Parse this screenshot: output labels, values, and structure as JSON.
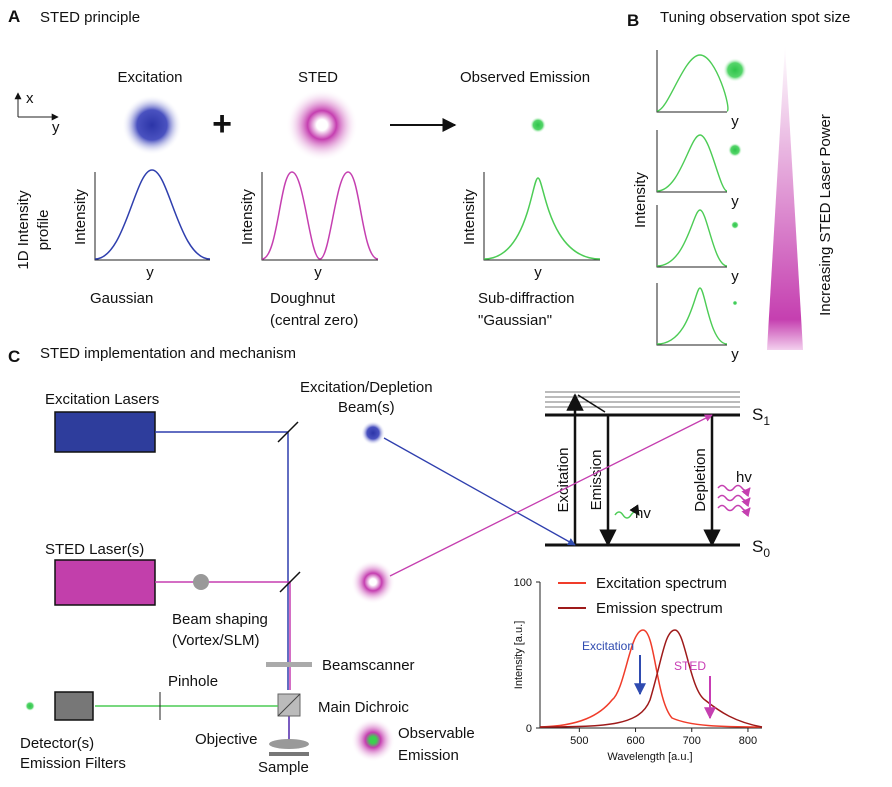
{
  "panel_a": {
    "label": "A",
    "title": "STED principle",
    "axis_x": "x",
    "axis_y": "y",
    "profile_label": [
      "1D Intensity",
      "profile"
    ],
    "plus": "+",
    "excitation": {
      "title": "Excitation",
      "ylabel": "Intensity",
      "xlabel": "y",
      "caption": [
        "Gaussian"
      ]
    },
    "sted": {
      "title": "STED",
      "ylabel": "Intensity",
      "xlabel": "y",
      "caption": [
        "Doughnut",
        "(central zero)"
      ]
    },
    "emission": {
      "title": "Observed Emission",
      "ylabel": "Intensity",
      "xlabel": "y",
      "caption": [
        "Sub-diffraction",
        "\"Gaussian\""
      ]
    }
  },
  "panel_b": {
    "label": "B",
    "title": "Tuning observation spot size",
    "ylabel": "Intensity",
    "xlabels": [
      "y",
      "y",
      "y",
      "y"
    ],
    "power_label": "Increasing STED Laser Power"
  },
  "panel_c": {
    "label": "C",
    "title": "STED implementation and mechanism",
    "excitation_lasers": "Excitation Lasers",
    "sted_lasers": "STED Laser(s)",
    "beam_shaping": [
      "Beam shaping",
      "(Vortex/SLM)"
    ],
    "pinhole": "Pinhole",
    "detector": [
      "Detector(s)",
      "Emission Filters"
    ],
    "objective": "Objective",
    "sample": "Sample",
    "beamscanner": "Beamscanner",
    "main_dichroic": "Main Dichroic",
    "beams": [
      "Excitation/Depletion",
      "Beam(s)"
    ],
    "observable": [
      "Observable",
      "Emission"
    ],
    "jablonski": {
      "s1": {
        "letter": "S",
        "sub": "1"
      },
      "s0": {
        "letter": "S",
        "sub": "0"
      },
      "excitation": "Excitation",
      "emission": "Emission",
      "depletion": "Depletion",
      "hv_emission": "hv",
      "hv_depletion": "hv"
    },
    "spectrum": {
      "ylabel": "Intensity [a.u.]",
      "xlabel": "Wavelength [a.u.]",
      "xlim": [
        430,
        825
      ],
      "ylim": [
        0,
        100
      ],
      "xticks": [
        500,
        600,
        700,
        800
      ],
      "yticks": [
        0,
        100
      ],
      "legend": [
        {
          "name": "Excitation spectrum",
          "color": "#f03c2a"
        },
        {
          "name": "Emission spectrum",
          "color": "#9e1a1a"
        }
      ],
      "annotations": [
        {
          "text": "Excitation",
          "color": "#2f4bb0"
        },
        {
          "text": "STED",
          "color": "#c83cb4"
        }
      ]
    }
  }
}
